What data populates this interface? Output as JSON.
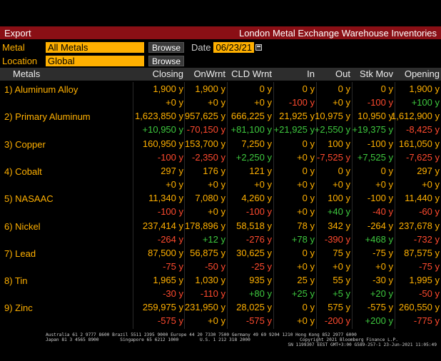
{
  "topbar": {
    "export_label": "Export",
    "title": "London Metal Exchange Warehouse Inventories"
  },
  "filters": {
    "metal_label": "Metal",
    "metal_value": "All Metals",
    "browse1": "Browse",
    "date_label": "Date",
    "date_value": "06/23/21",
    "location_label": "Location",
    "location_value": "Global",
    "browse2": "Browse"
  },
  "columns": [
    "Metals",
    "Closing",
    "OnWrnt",
    "CLD Wrnt",
    "In",
    "Out",
    "Stk Mov",
    "Opening"
  ],
  "rows": [
    {
      "name": "1) Aluminum Alloy",
      "values": [
        "1,900 y",
        "1,900 y",
        "0 y",
        "0 y",
        "0 y",
        "0 y",
        "1,900 y"
      ],
      "changes": [
        "+0 y",
        "+0 y",
        "+0 y",
        "-100 y",
        "+0 y",
        "-100 y",
        "+100 y"
      ]
    },
    {
      "name": "2) Primary Aluminum",
      "values": [
        "1,623,850 y",
        "957,625 y",
        "666,225 y",
        "21,925 y",
        "10,975 y",
        "10,950 y",
        "1,612,900 y"
      ],
      "changes": [
        "+10,950 y",
        "-70,150 y",
        "+81,100 y",
        "+21,925 y",
        "+2,550 y",
        "+19,375 y",
        "-8,425 y"
      ]
    },
    {
      "name": "3) Copper",
      "values": [
        "160,950 y",
        "153,700 y",
        "7,250 y",
        "0 y",
        "100 y",
        "-100 y",
        "161,050 y"
      ],
      "changes": [
        "-100 y",
        "-2,350 y",
        "+2,250 y",
        "+0 y",
        "-7,525 y",
        "+7,525 y",
        "-7,625 y"
      ]
    },
    {
      "name": "4) Cobalt",
      "values": [
        "297 y",
        "176 y",
        "121 y",
        "0 y",
        "0 y",
        "0 y",
        "297 y"
      ],
      "changes": [
        "+0 y",
        "+0 y",
        "+0 y",
        "+0 y",
        "+0 y",
        "+0 y",
        "+0 y"
      ]
    },
    {
      "name": "5) NASAAC",
      "values": [
        "11,340 y",
        "7,080 y",
        "4,260 y",
        "0 y",
        "100 y",
        "-100 y",
        "11,440 y"
      ],
      "changes": [
        "-100 y",
        "+0 y",
        "-100 y",
        "+0 y",
        "+40 y",
        "-40 y",
        "-60 y"
      ]
    },
    {
      "name": "6) Nickel",
      "values": [
        "237,414 y",
        "178,896 y",
        "58,518 y",
        "78 y",
        "342 y",
        "-264 y",
        "237,678 y"
      ],
      "changes": [
        "-264 y",
        "+12 y",
        "-276 y",
        "+78 y",
        "-390 y",
        "+468 y",
        "-732 y"
      ]
    },
    {
      "name": "7) Lead",
      "values": [
        "87,500 y",
        "56,875 y",
        "30,625 y",
        "0 y",
        "75 y",
        "-75 y",
        "87,575 y"
      ],
      "changes": [
        "-75 y",
        "-50 y",
        "-25 y",
        "+0 y",
        "+0 y",
        "+0 y",
        "-75 y"
      ]
    },
    {
      "name": "8) Tin",
      "values": [
        "1,965 y",
        "1,030 y",
        "935 y",
        "25 y",
        "55 y",
        "-30 y",
        "1,995 y"
      ],
      "changes": [
        "-30 y",
        "-110 y",
        "+80 y",
        "+25 y",
        "+5 y",
        "+20 y",
        "-50 y"
      ]
    },
    {
      "name": "9) Zinc",
      "values": [
        "259,975 y",
        "231,950 y",
        "28,025 y",
        "0 y",
        "575 y",
        "-575 y",
        "260,550 y"
      ],
      "changes": [
        "-575 y",
        "+0 y",
        "-575 y",
        "+0 y",
        "-200 y",
        "+200 y",
        "-775 y"
      ]
    }
  ],
  "footer": {
    "line1": "Australia 61 2 9777 8600 Brazil 5511 2395 9000 Europe 44 20 7330 7500 Germany 49 69 9204 1210 Hong Kong 852 2977 6000",
    "line2": "Japan 81 3 4565 8900        Singapore 65 6212 1000        U.S. 1 212 318 2000",
    "line3": "Copyright 2021 Bloomberg Finance L.P.",
    "line4": "SN 1199307 EEST GMT+3:00 G589-257-1 23-Jun-2021 11:05:49"
  },
  "colors": {
    "amber": "#ffb000",
    "positive": "#3ec83e",
    "negative": "#ff4a2e",
    "bar": "#8a0f15"
  }
}
